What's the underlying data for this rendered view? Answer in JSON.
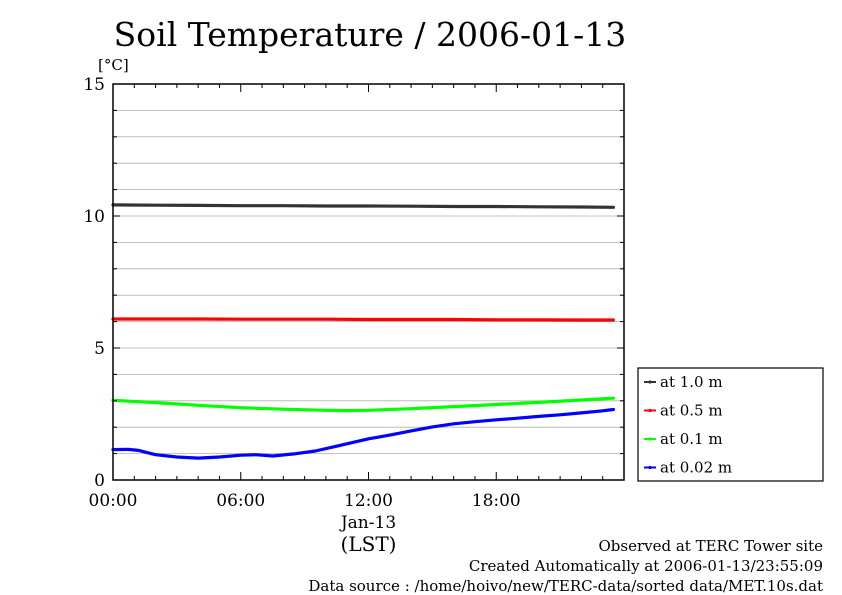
{
  "chart_data": {
    "type": "line",
    "title": "Soil Temperature / 2006-01-13",
    "ylabel": "[°C]",
    "ylim": [
      0,
      15
    ],
    "xlim": [
      0,
      24
    ],
    "y_ticks": [
      0,
      5,
      10,
      15
    ],
    "y_tick_labels": [
      "0",
      "5",
      "10",
      "15"
    ],
    "x_ticks": [
      0,
      6,
      12,
      18
    ],
    "x_tick_labels": [
      "00:00",
      "06:00",
      "12:00",
      "18:00"
    ],
    "x_date_label": "Jan-13",
    "x_date_at": 12,
    "xlabel": "(LST)",
    "grid": true,
    "legend_position": "right",
    "series": [
      {
        "name": "at 1.0 m",
        "color": "#333333",
        "x": [
          0,
          2,
          4,
          6,
          8,
          10,
          12,
          14,
          16,
          18,
          20,
          22,
          23.5
        ],
        "y": [
          10.42,
          10.41,
          10.4,
          10.39,
          10.39,
          10.38,
          10.38,
          10.37,
          10.36,
          10.36,
          10.35,
          10.34,
          10.33
        ]
      },
      {
        "name": "at 0.5 m",
        "color": "#ff0000",
        "x": [
          0,
          2,
          4,
          6,
          8,
          10,
          12,
          14,
          16,
          18,
          20,
          22,
          23.5
        ],
        "y": [
          6.1,
          6.1,
          6.1,
          6.09,
          6.09,
          6.09,
          6.08,
          6.08,
          6.08,
          6.07,
          6.07,
          6.06,
          6.06
        ]
      },
      {
        "name": "at 0.1 m",
        "color": "#00ff00",
        "x": [
          0,
          2,
          4,
          6,
          8,
          10,
          11,
          12,
          14,
          16,
          18,
          20,
          22,
          23.5
        ],
        "y": [
          3.02,
          2.93,
          2.83,
          2.74,
          2.68,
          2.64,
          2.63,
          2.64,
          2.7,
          2.78,
          2.86,
          2.94,
          3.03,
          3.1
        ]
      },
      {
        "name": "at 0.02 m",
        "color": "#0000ff",
        "x": [
          0,
          0.7,
          1.2,
          2,
          3,
          4,
          5,
          6,
          6.7,
          7.5,
          8.5,
          9.5,
          10.5,
          12,
          13,
          14,
          15,
          16,
          17,
          18,
          19,
          20,
          21,
          22,
          23,
          23.5
        ],
        "y": [
          1.15,
          1.16,
          1.12,
          0.96,
          0.87,
          0.83,
          0.87,
          0.94,
          0.96,
          0.91,
          0.99,
          1.1,
          1.28,
          1.56,
          1.7,
          1.86,
          2.01,
          2.13,
          2.21,
          2.28,
          2.34,
          2.41,
          2.47,
          2.54,
          2.62,
          2.67
        ]
      }
    ]
  },
  "footer": {
    "line1": "Observed at TERC Tower site",
    "line2": "Created Automatically at 2006-01-13/23:55:09",
    "line3": "Data source : /home/hoivo/new/TERC-data/sorted  data/MET.10s.dat"
  }
}
